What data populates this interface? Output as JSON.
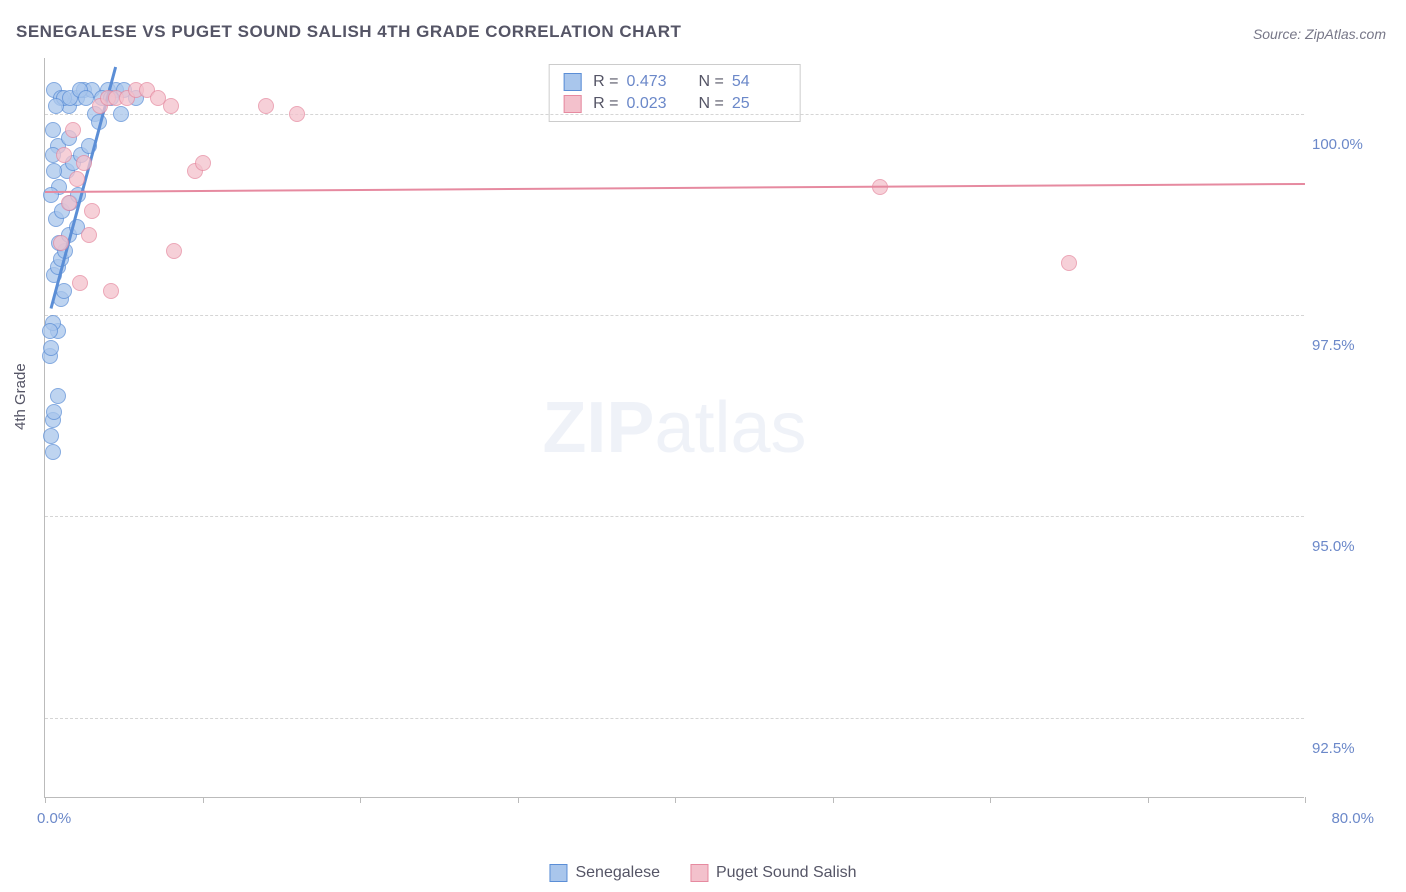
{
  "title": "SENEGALESE VS PUGET SOUND SALISH 4TH GRADE CORRELATION CHART",
  "source": "Source: ZipAtlas.com",
  "y_axis_title": "4th Grade",
  "watermark": {
    "zip": "ZIP",
    "atlas": "atlas"
  },
  "chart": {
    "type": "scatter",
    "xlim": [
      0,
      80
    ],
    "ylim": [
      91.5,
      100.7
    ],
    "x_tick_step": 10,
    "x_tick_labels": [
      "0.0%",
      "80.0%"
    ],
    "y_gridlines": [
      92.5,
      95.0,
      97.5,
      100.0
    ],
    "y_tick_labels": [
      "92.5%",
      "95.0%",
      "97.5%",
      "100.0%"
    ],
    "grid_color": "#d5d5d5",
    "background_color": "#ffffff",
    "axis_color": "#bbbbbb",
    "label_color": "#6b88c9",
    "marker_radius": 8,
    "marker_border_width": 1,
    "marker_fill_opacity": 0.25,
    "series": [
      {
        "name": "Senegalese",
        "color_fill": "#a9c6ec",
        "color_stroke": "#5b8ed6",
        "R": "0.473",
        "N": "54",
        "trend": {
          "x1": 0.4,
          "y1": 97.6,
          "x2": 4.5,
          "y2": 100.6,
          "width": 3
        },
        "points": [
          [
            0.3,
            97.0
          ],
          [
            0.4,
            97.1
          ],
          [
            0.5,
            96.2
          ],
          [
            0.6,
            96.3
          ],
          [
            0.4,
            96.0
          ],
          [
            0.8,
            97.3
          ],
          [
            0.5,
            97.4
          ],
          [
            1.0,
            97.7
          ],
          [
            1.2,
            97.8
          ],
          [
            0.6,
            98.0
          ],
          [
            0.8,
            98.1
          ],
          [
            1.0,
            98.2
          ],
          [
            1.3,
            98.3
          ],
          [
            0.9,
            98.4
          ],
          [
            1.5,
            98.5
          ],
          [
            2.0,
            98.6
          ],
          [
            0.7,
            98.7
          ],
          [
            1.1,
            98.8
          ],
          [
            1.6,
            98.9
          ],
          [
            2.1,
            99.0
          ],
          [
            0.9,
            99.1
          ],
          [
            1.4,
            99.3
          ],
          [
            1.8,
            99.4
          ],
          [
            2.3,
            99.5
          ],
          [
            2.8,
            99.6
          ],
          [
            3.2,
            100.0
          ],
          [
            1.5,
            100.1
          ],
          [
            2.0,
            100.2
          ],
          [
            2.5,
            100.3
          ],
          [
            3.0,
            100.3
          ],
          [
            4.0,
            100.3
          ],
          [
            4.5,
            100.3
          ],
          [
            5.0,
            100.3
          ],
          [
            3.6,
            100.2
          ],
          [
            4.2,
            100.2
          ],
          [
            0.6,
            100.3
          ],
          [
            1.0,
            100.2
          ],
          [
            1.2,
            100.2
          ],
          [
            1.6,
            100.2
          ],
          [
            2.2,
            100.3
          ],
          [
            2.6,
            100.2
          ],
          [
            3.4,
            99.9
          ],
          [
            4.8,
            100.0
          ],
          [
            5.8,
            100.2
          ],
          [
            0.5,
            99.8
          ],
          [
            0.8,
            99.6
          ],
          [
            1.5,
            99.7
          ],
          [
            0.5,
            95.8
          ],
          [
            0.8,
            96.5
          ],
          [
            0.3,
            97.3
          ],
          [
            0.4,
            99.0
          ],
          [
            0.6,
            99.3
          ],
          [
            0.5,
            99.5
          ],
          [
            0.7,
            100.1
          ]
        ]
      },
      {
        "name": "Puget Sound Salish",
        "color_fill": "#f3c1cc",
        "color_stroke": "#e68aa0",
        "R": "0.023",
        "N": "25",
        "trend": {
          "x1": 0.0,
          "y1": 99.05,
          "x2": 80.0,
          "y2": 99.15,
          "width": 2
        },
        "points": [
          [
            1.0,
            98.4
          ],
          [
            1.5,
            98.9
          ],
          [
            2.0,
            99.2
          ],
          [
            2.2,
            97.9
          ],
          [
            2.8,
            98.5
          ],
          [
            3.0,
            98.8
          ],
          [
            3.5,
            100.1
          ],
          [
            4.0,
            100.2
          ],
          [
            4.5,
            100.2
          ],
          [
            5.2,
            100.2
          ],
          [
            5.8,
            100.3
          ],
          [
            6.5,
            100.3
          ],
          [
            7.2,
            100.2
          ],
          [
            8.0,
            100.1
          ],
          [
            4.2,
            97.8
          ],
          [
            8.2,
            98.3
          ],
          [
            9.5,
            99.3
          ],
          [
            10.0,
            99.4
          ],
          [
            14.0,
            100.1
          ],
          [
            16.0,
            100.0
          ],
          [
            53.0,
            99.1
          ],
          [
            65.0,
            98.15
          ],
          [
            1.2,
            99.5
          ],
          [
            1.8,
            99.8
          ],
          [
            2.5,
            99.4
          ]
        ]
      }
    ]
  },
  "legend_top_labels": {
    "R": "R =",
    "N": "N ="
  },
  "legend_bottom": [
    "Senegalese",
    "Puget Sound Salish"
  ]
}
